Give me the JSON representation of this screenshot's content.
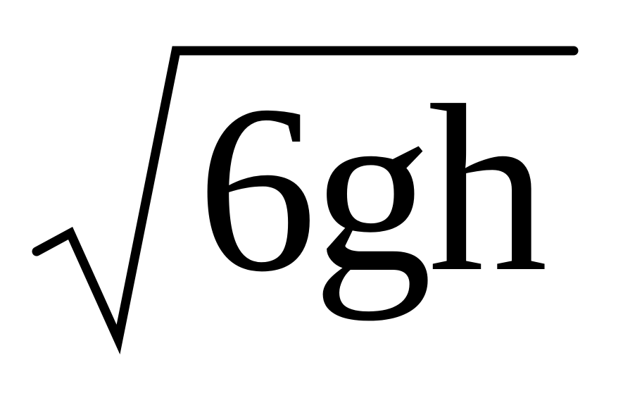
{
  "formula": {
    "radicand": "6gh",
    "text_color": "#000000",
    "background_color": "#ffffff"
  }
}
